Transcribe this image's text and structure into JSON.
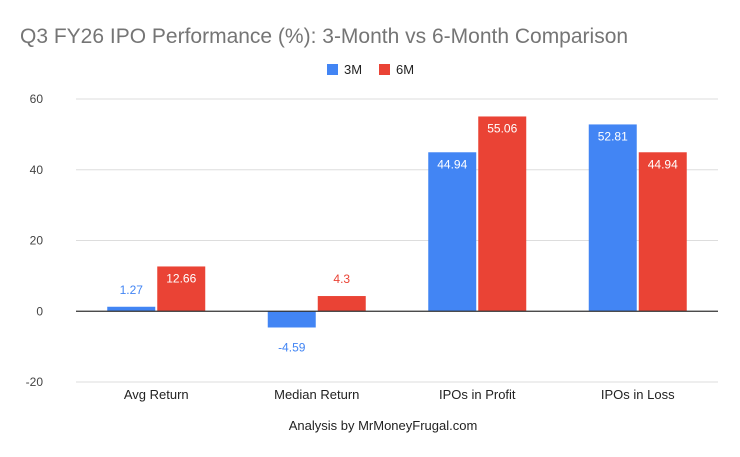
{
  "chart_data": {
    "type": "bar",
    "title": "Q3 FY26 IPO Performance (%): 3-Month vs 6-Month Comparison",
    "xlabel": "Analysis by MrMoneyFrugal.com",
    "ylabel": "",
    "categories": [
      "Avg Return",
      "Median Return",
      "IPOs in Profit",
      "IPOs in Loss"
    ],
    "series": [
      {
        "name": "3M",
        "color": "#4285f4",
        "values": [
          1.27,
          -4.59,
          44.94,
          52.81
        ]
      },
      {
        "name": "6M",
        "color": "#ea4335",
        "values": [
          12.66,
          4.3,
          55.06,
          44.94
        ]
      }
    ],
    "ylim": [
      -20,
      60
    ],
    "yticks": [
      -20,
      0,
      20,
      40,
      60
    ],
    "grid": true,
    "legend": "top-center",
    "data_labels": true
  }
}
